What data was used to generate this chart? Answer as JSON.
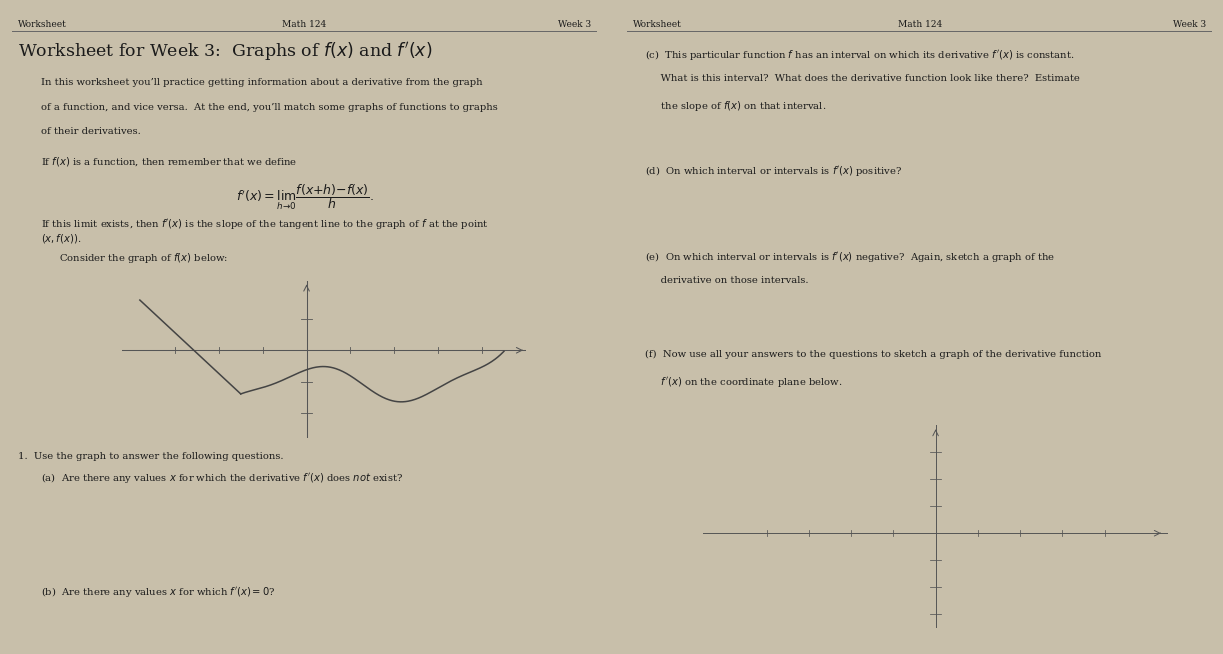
{
  "bg_left": "#c8bfaa",
  "bg_right": "#ddd8cc",
  "divider_color": "#666666",
  "text_color": "#1a1a1a",
  "graph_color": "#444444",
  "axis_color": "#555555",
  "left_page": {
    "header_left": "Worksheet",
    "header_center": "Math 124",
    "header_right": "Week 3",
    "title": "Worksheet for Week 3:  Graphs of $f(x)$ and $f'(x)$",
    "intro_lines": [
      "In this worksheet you’ll practice getting information about a derivative from the graph",
      "of a function, and vice versa.  At the end, you’ll match some graphs of functions to graphs",
      "of their derivatives."
    ],
    "define_text": "If $f(x)$ is a function, then remember that we define",
    "formula": "$f'(x) = \\lim_{h \\to 0} \\dfrac{f(x+h) - f(x)}{h}.$",
    "limit_line1": "If this limit exists, then $f'(x)$ is the slope of the tangent line to the graph of $f$ at the point",
    "limit_line2": "$(x, f(x))$.",
    "consider_text": "Consider the graph of $f(x)$ below:",
    "q1": "1.  Use the graph to answer the following questions.",
    "qa": "(a)  Are there any values $x$ for which the derivative $f'(x)$ does $\\it{not}$ exist?",
    "qb": "(b)  Are there any values $x$ for which $f'(x) = 0$?"
  },
  "right_page": {
    "header_left": "Worksheet",
    "header_center": "Math 124",
    "header_right": "Week 3",
    "qc_lines": [
      "(c)  This particular function $f$ has an interval on which its derivative $f'(x)$ is constant.",
      "     What is this interval?  What does the derivative function look like there?  Estimate",
      "     the slope of $f(x)$ on that interval."
    ],
    "qd": "(d)  On which interval or intervals is $f'(x)$ positive?",
    "qe_lines": [
      "(e)  On which interval or intervals is $f'(x)$ negative?  Again, sketch a graph of the",
      "     derivative on those intervals."
    ],
    "qf_lines": [
      "(f)  Now use all your answers to the questions to sketch a graph of the derivative function",
      "     $f'(x)$ on the coordinate plane below."
    ]
  }
}
